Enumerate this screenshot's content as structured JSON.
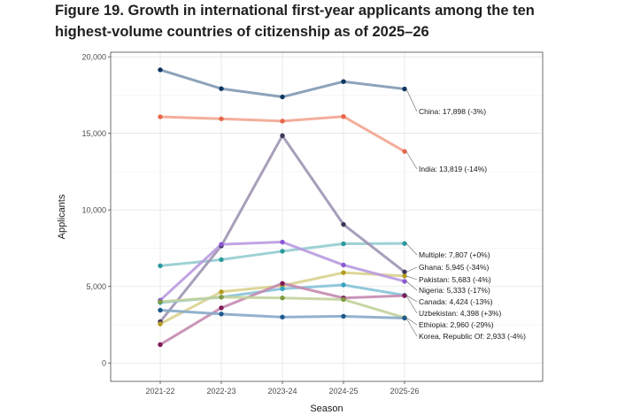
{
  "figure": {
    "title_line1": "Figure 19. Growth in international first-year applicants among the ten",
    "title_line2": "highest-volume countries of citizenship as of 2025–26"
  },
  "chart_data": {
    "type": "line",
    "title": "Figure 19. Growth in international first-year applicants among the ten highest-volume countries of citizenship as of 2025–26",
    "xlabel": "Season",
    "ylabel": "Applicants",
    "categories": [
      "2021-22",
      "2022-23",
      "2023-24",
      "2024-25",
      "2025-26"
    ],
    "ylim": [
      -1200,
      20300
    ],
    "yticks": [
      0,
      5000,
      10000,
      15000,
      20000
    ],
    "ytick_labels": [
      "0",
      "5,000",
      "10,000",
      "15,000",
      "20,000"
    ],
    "grid": true,
    "series": [
      {
        "name": "China",
        "label": "China: 17,898 (-3%)",
        "values": [
          19150,
          17920,
          17380,
          18380,
          17898
        ],
        "line_color": "#7f99b3",
        "point_color": "#0d3561"
      },
      {
        "name": "India",
        "label": "India: 13,819 (-14%)",
        "values": [
          16080,
          15950,
          15800,
          16100,
          13819
        ],
        "line_color": "#f2a590",
        "point_color": "#e8664a"
      },
      {
        "name": "Multiple",
        "label": "Multiple: 7,807 (+0%)",
        "values": [
          6350,
          6750,
          7300,
          7790,
          7807
        ],
        "line_color": "#93ccd0",
        "point_color": "#2a9a9c"
      },
      {
        "name": "Ghana",
        "label": "Ghana: 5,945 (-34%)",
        "values": [
          2700,
          7650,
          14850,
          9050,
          5945
        ],
        "line_color": "#9e93b3",
        "point_color": "#3f3559"
      },
      {
        "name": "Pakistan",
        "label": "Pakistan: 5,683 (-4%)",
        "values": [
          2550,
          4650,
          5050,
          5900,
          5683
        ],
        "line_color": "#d9d18e",
        "point_color": "#b59b1f"
      },
      {
        "name": "Nigeria",
        "label": "Nigeria: 5,333 (-17%)",
        "values": [
          4100,
          7750,
          7900,
          6400,
          5333
        ],
        "line_color": "#b99ae0",
        "point_color": "#8e58d6"
      },
      {
        "name": "Canada",
        "label": "Canada: 4,424 (-13%)",
        "values": [
          3950,
          4300,
          4850,
          5100,
          4424
        ],
        "line_color": "#86c2d8",
        "point_color": "#34a5c4"
      },
      {
        "name": "Uzbekistan",
        "label": "Uzbekistan: 4,398 (+3%)",
        "values": [
          1200,
          3600,
          5200,
          4250,
          4398
        ],
        "line_color": "#c48ab0",
        "point_color": "#7d1a57"
      },
      {
        "name": "Ethiopia",
        "label": "Ethiopia: 2,960 (-29%)",
        "values": [
          4000,
          4300,
          4250,
          4150,
          2960
        ],
        "line_color": "#c2d29b",
        "point_color": "#7e9b3d"
      },
      {
        "name": "Korea, Republic Of",
        "label": "Korea, Republic Of: 2,933 (-4%)",
        "values": [
          3450,
          3200,
          3000,
          3050,
          2933
        ],
        "line_color": "#86a9c8",
        "point_color": "#1e5a8f"
      }
    ]
  }
}
